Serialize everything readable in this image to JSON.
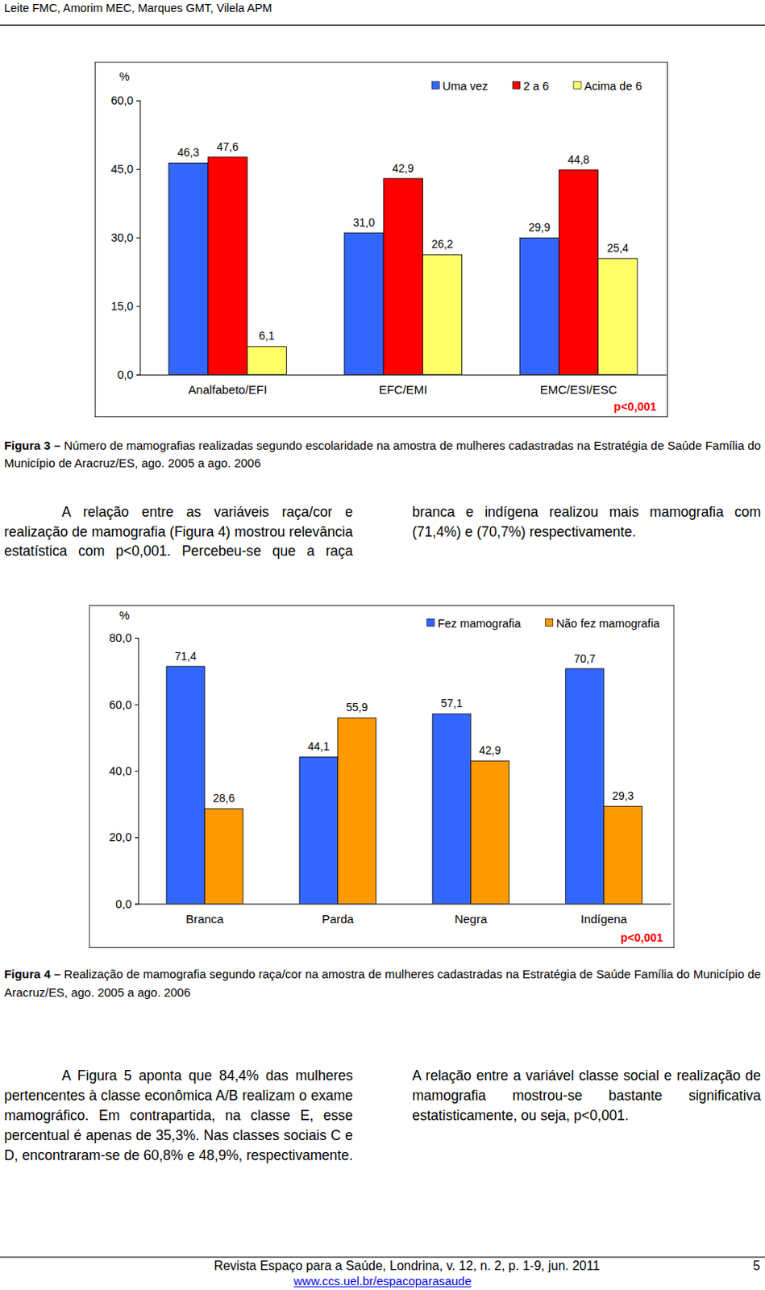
{
  "header": {
    "authors": "Leite FMC, Amorim MEC, Marques GMT, Vilela APM"
  },
  "chart_data": [
    {
      "type": "bar",
      "ylabel": "%",
      "categories": [
        "Analfabeto/EFI",
        "EFC/EMI",
        "EMC/ESI/ESC"
      ],
      "series": [
        {
          "name": "Uma vez",
          "color": "#3366ff",
          "values": [
            46.3,
            31.0,
            29.9
          ],
          "value_labels": [
            "46,3",
            "31,0",
            "29,9"
          ]
        },
        {
          "name": "2 a 6",
          "color": "#ff0000",
          "values": [
            47.6,
            42.9,
            44.8
          ],
          "value_labels": [
            "47,6",
            "42,9",
            "44,8"
          ]
        },
        {
          "name": "Acima de 6",
          "color": "#ffff66",
          "values": [
            6.1,
            26.2,
            25.4
          ],
          "value_labels": [
            "6,1",
            "26,2",
            "25,4"
          ]
        }
      ],
      "ylim": [
        0,
        60
      ],
      "yticks": [
        {
          "value": 0,
          "label": "0,0"
        },
        {
          "value": 15,
          "label": "15,0"
        },
        {
          "value": 30,
          "label": "30,0"
        },
        {
          "value": 45,
          "label": "45,0"
        },
        {
          "value": 60,
          "label": "60,0"
        }
      ],
      "data_labels": true,
      "legend": "top-right",
      "annotations": [
        "p<0,001"
      ]
    },
    {
      "type": "bar",
      "ylabel": "%",
      "categories": [
        "Branca",
        "Parda",
        "Negra",
        "Indígena"
      ],
      "series": [
        {
          "name": "Fez mamografia",
          "color": "#3366ff",
          "values": [
            71.4,
            44.1,
            57.1,
            70.7
          ],
          "value_labels": [
            "71,4",
            "44,1",
            "57,1",
            "70,7"
          ]
        },
        {
          "name": "Não fez mamografia",
          "color": "#ff9900",
          "values": [
            28.6,
            55.9,
            42.9,
            29.3
          ],
          "value_labels": [
            "28,6",
            "55,9",
            "42,9",
            "29,3"
          ]
        }
      ],
      "ylim": [
        0,
        80
      ],
      "yticks": [
        {
          "value": 0,
          "label": "0,0"
        },
        {
          "value": 20,
          "label": "20,0"
        },
        {
          "value": 40,
          "label": "40,0"
        },
        {
          "value": 60,
          "label": "60,0"
        },
        {
          "value": 80,
          "label": "80,0"
        }
      ],
      "data_labels": true,
      "legend": "top-right",
      "annotations": [
        "p<0,001"
      ]
    }
  ],
  "captions": [
    {
      "label": "Figura 3 –",
      "text": "Número de mamografias realizadas segundo escolaridade na amostra de mulheres cadastradas na Estratégia de Saúde Família do Município de Aracruz/ES, ago. 2005 a ago. 2006"
    },
    {
      "label": "Figura 4 –",
      "text": "Realização de mamografia segundo raça/cor na amostra de mulheres cadastradas na Estratégia de Saúde Família do Município de Aracruz/ES, ago. 2005 a ago. 2006"
    }
  ],
  "paragraphs": [
    "A relação entre as variáveis raça/cor e realização de mamografia (Figura 4) mostrou relevância estatística com p<0,001. Percebeu-se que a raça branca e indígena realizou mais mamografia com (71,4%) e (70,7%) respectivamente.",
    "A Figura 5 aponta que 84,4% das mulheres pertencentes à classe econômica A/B realizam o exame mamográfico. Em contrapartida, na classe E, esse percentual é apenas de 35,3%. Nas classes sociais C e D, encontraram-se de 60,8% e 48,9%, respectivamente. A relação entre a variável classe social e realização de mamografia mostrou-se bastante significativa estatisticamente, ou seja, p<0,001."
  ],
  "footer": {
    "journal": "Revista Espaço para a Saúde, Londrina, v. 12, n. 2, p. 1-9, jun. 2011",
    "page": "5",
    "url": "www.ccs.uel.br/espacoparasaude"
  }
}
